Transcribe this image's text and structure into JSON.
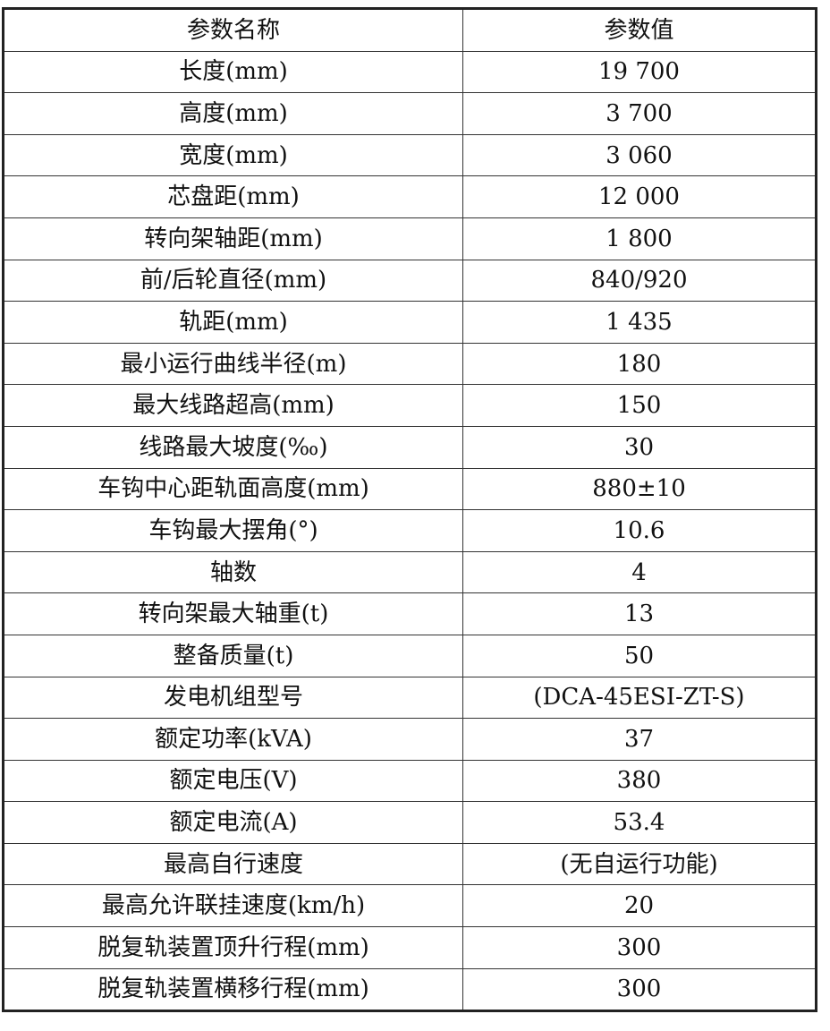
{
  "table": {
    "headers": [
      "参数名称",
      "参数值"
    ],
    "rows": [
      [
        "长度(mm)",
        "19 700"
      ],
      [
        "高度(mm)",
        "3 700"
      ],
      [
        "宽度(mm)",
        "3 060"
      ],
      [
        "芯盘距(mm)",
        "12 000"
      ],
      [
        "转向架轴距(mm)",
        "1 800"
      ],
      [
        "前/后轮直径(mm)",
        "840/920"
      ],
      [
        "轨距(mm)",
        "1 435"
      ],
      [
        "最小运行曲线半径(m)",
        "180"
      ],
      [
        "最大线路超高(mm)",
        "150"
      ],
      [
        "线路最大坡度(‰)",
        "30"
      ],
      [
        "车钩中心距轨面高度(mm)",
        "880±10"
      ],
      [
        "车钩最大摆角(°)",
        "10.6"
      ],
      [
        "轴数",
        "4"
      ],
      [
        "转向架最大轴重(t)",
        "13"
      ],
      [
        "整备质量(t)",
        "50"
      ],
      [
        "发电机组型号",
        "(DCA-45ESI-ZT-S)"
      ],
      [
        "额定功率(kVA)",
        "37"
      ],
      [
        "额定电压(V)",
        "380"
      ],
      [
        "额定电流(A)",
        "53.4"
      ],
      [
        "最高自行速度",
        "(无自运行功能)"
      ],
      [
        "最高允许联挂速度(km/h)",
        "20"
      ],
      [
        "脱复轨装置顶升行程(mm)",
        "300"
      ],
      [
        "脱复轨装置横移行程(mm)",
        "300"
      ]
    ]
  }
}
